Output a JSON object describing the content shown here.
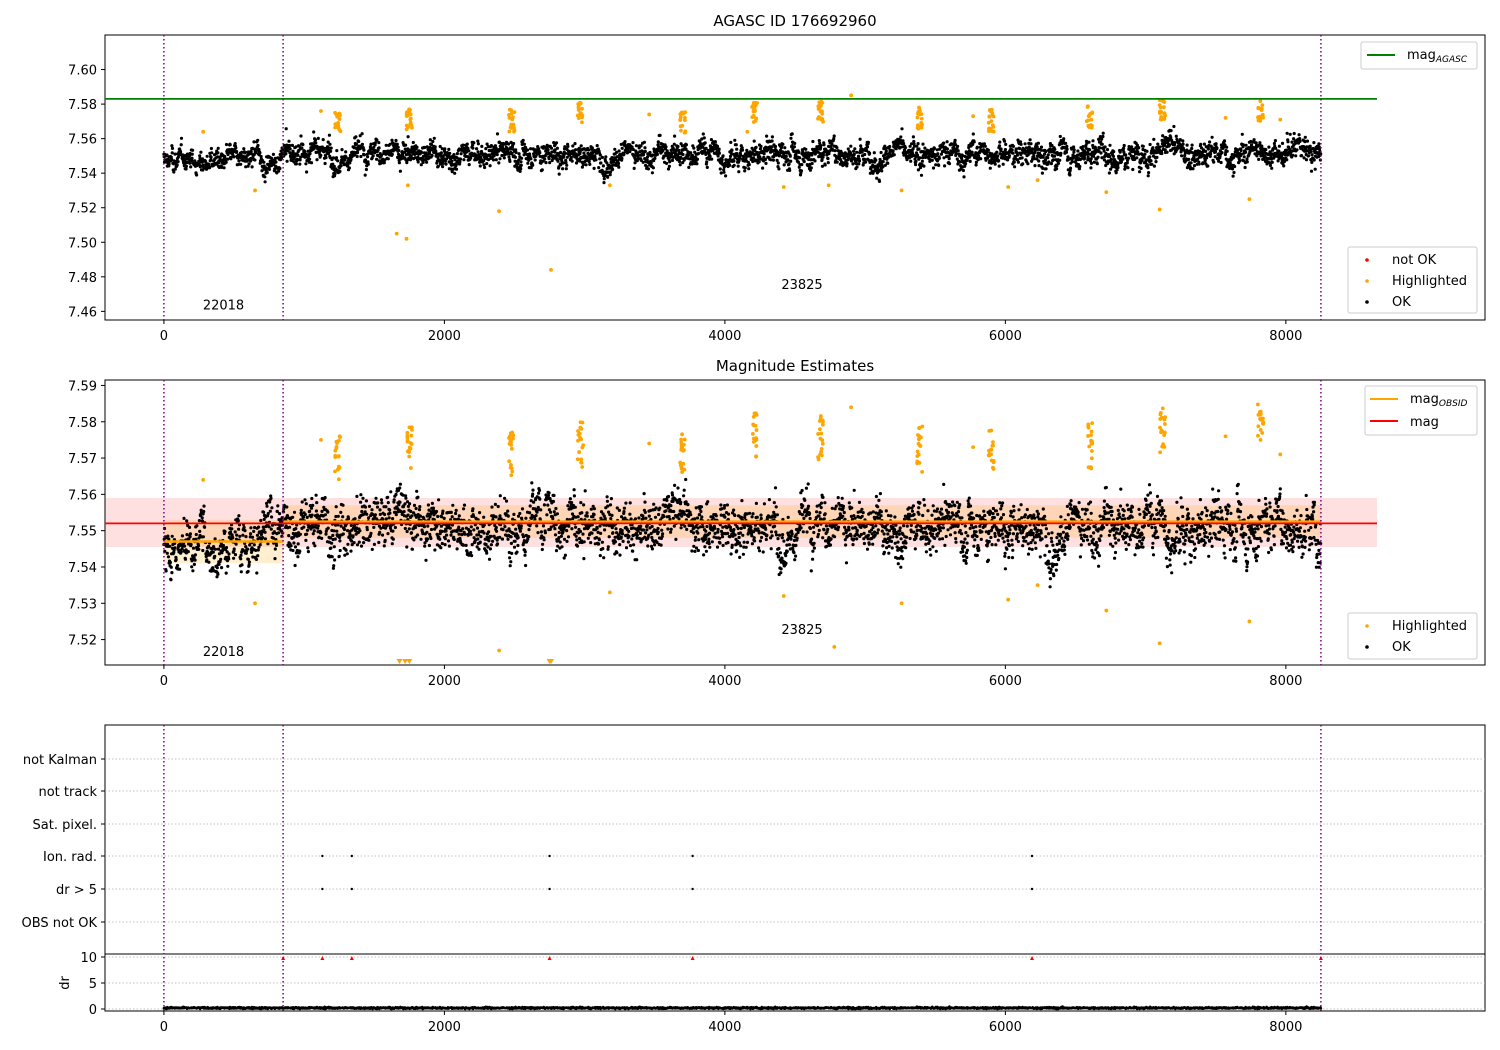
{
  "figure": {
    "x_ticks": [
      0,
      2000,
      4000,
      6000,
      8000
    ],
    "x_range": [
      -420,
      9420
    ]
  },
  "colors": {
    "ok": "#000000",
    "highlighted": "#ffa500",
    "not_ok": "#ff0000",
    "agasc_line": "#008000",
    "mag_line": "#ff0000",
    "obsid_line": "#ffa500",
    "separator": "#800080"
  },
  "separators": [
    0,
    850,
    8250
  ],
  "chart_data": [
    {
      "type": "scatter",
      "title": "AGASC ID 176692960",
      "ylim": [
        7.455,
        7.62
      ],
      "y_ticks": [
        7.46,
        7.48,
        7.5,
        7.52,
        7.54,
        7.56,
        7.58,
        7.6
      ],
      "y_tick_labels": [
        "7.46",
        "7.48",
        "7.50",
        "7.52",
        "7.54",
        "7.56",
        "7.58",
        "7.60"
      ],
      "reference_line": {
        "name": "mag",
        "subscript": "AGASC",
        "y": 7.583,
        "x_range": [
          -420,
          8650
        ]
      },
      "legend_top": {
        "placement": "top-right",
        "entries": [
          {
            "label": "mag",
            "subscript": "AGASC"
          }
        ]
      },
      "legend_bottom": {
        "placement": "bottom-right",
        "entries": [
          "not OK",
          "Highlighted",
          "OK"
        ]
      },
      "obsid_labels": [
        {
          "text": "22018",
          "x": 425,
          "y": 7.461
        },
        {
          "text": "23825",
          "x": 4550,
          "y": 7.473
        }
      ],
      "series": [
        {
          "name": "OK",
          "segments": [
            {
              "x": [
                0,
                850
              ],
              "mean": 7.547,
              "sigma": 0.004
            },
            {
              "x": [
                850,
                8250
              ],
              "mean": 7.552,
              "sigma": 0.005
            }
          ]
        },
        {
          "name": "Highlighted",
          "points": [
            [
              280,
              7.564
            ],
            [
              650,
              7.53
            ],
            [
              1120,
              7.576
            ],
            [
              1660,
              7.505
            ],
            [
              1730,
              7.502
            ],
            [
              1740,
              7.533
            ],
            [
              2390,
              7.518
            ],
            [
              2760,
              7.484
            ],
            [
              3180,
              7.533
            ],
            [
              3460,
              7.574
            ],
            [
              4160,
              7.564
            ],
            [
              4420,
              7.532
            ],
            [
              4740,
              7.533
            ],
            [
              4900,
              7.585
            ],
            [
              5260,
              7.53
            ],
            [
              5770,
              7.573
            ],
            [
              6020,
              7.532
            ],
            [
              6230,
              7.536
            ],
            [
              6720,
              7.529
            ],
            [
              7100,
              7.519
            ],
            [
              7570,
              7.572
            ],
            [
              7740,
              7.525
            ],
            [
              7960,
              7.571
            ]
          ],
          "bursts": [
            [
              1240,
              7.574
            ],
            [
              1750,
              7.576
            ],
            [
              2480,
              7.575
            ],
            [
              2970,
              7.579
            ],
            [
              3700,
              7.574
            ],
            [
              4210,
              7.58
            ],
            [
              4680,
              7.58
            ],
            [
              5390,
              7.576
            ],
            [
              5900,
              7.575
            ],
            [
              6600,
              7.577
            ],
            [
              7120,
              7.582
            ],
            [
              7820,
              7.581
            ]
          ]
        },
        {
          "name": "not OK",
          "points": []
        }
      ]
    },
    {
      "type": "scatter",
      "title": "Magnitude Estimates",
      "ylim": [
        7.513,
        7.5915
      ],
      "y_ticks": [
        7.52,
        7.53,
        7.54,
        7.55,
        7.56,
        7.57,
        7.58,
        7.59
      ],
      "y_tick_labels": [
        "7.52",
        "7.53",
        "7.54",
        "7.55",
        "7.56",
        "7.57",
        "7.58",
        "7.59"
      ],
      "mag_line": {
        "name": "mag",
        "y": 7.552,
        "band": [
          7.5455,
          7.559
        ],
        "x_range": [
          -420,
          8650
        ]
      },
      "obsid_lines": [
        {
          "name": "mag",
          "subscript": "OBSID",
          "x": [
            0,
            850
          ],
          "y": 7.547,
          "band": [
            7.541,
            7.553
          ]
        },
        {
          "x": [
            850,
            8250
          ],
          "y": 7.5525,
          "band": [
            7.548,
            7.557
          ]
        }
      ],
      "legend_top": {
        "placement": "top-right",
        "entries": [
          {
            "label": "mag",
            "subscript": "OBSID"
          },
          {
            "label": "mag"
          }
        ]
      },
      "legend_bottom": {
        "placement": "bottom-right",
        "entries": [
          "Highlighted",
          "OK"
        ]
      },
      "obsid_labels": [
        {
          "text": "22018",
          "x": 425,
          "y": 7.5155
        },
        {
          "text": "23825",
          "x": 4550,
          "y": 7.5215
        }
      ],
      "out_of_range_markers": [
        1680,
        1720,
        1750,
        2750,
        2760
      ],
      "series": [
        {
          "name": "OK",
          "segments": [
            {
              "x": [
                0,
                850
              ],
              "mean": 7.547,
              "sigma": 0.004
            },
            {
              "x": [
                850,
                8250
              ],
              "mean": 7.552,
              "sigma": 0.005
            }
          ]
        },
        {
          "name": "Highlighted",
          "points": [
            [
              280,
              7.564
            ],
            [
              650,
              7.53
            ],
            [
              1120,
              7.575
            ],
            [
              2390,
              7.517
            ],
            [
              3180,
              7.533
            ],
            [
              3460,
              7.574
            ],
            [
              4420,
              7.532
            ],
            [
              4780,
              7.518
            ],
            [
              4900,
              7.584
            ],
            [
              5260,
              7.53
            ],
            [
              5770,
              7.573
            ],
            [
              6020,
              7.531
            ],
            [
              6230,
              7.535
            ],
            [
              6720,
              7.528
            ],
            [
              7100,
              7.519
            ],
            [
              7570,
              7.576
            ],
            [
              7740,
              7.525
            ],
            [
              7960,
              7.571
            ]
          ],
          "bursts": [
            [
              1240,
              7.575
            ],
            [
              1750,
              7.577
            ],
            [
              2480,
              7.576
            ],
            [
              2970,
              7.578
            ],
            [
              3700,
              7.575
            ],
            [
              4210,
              7.581
            ],
            [
              4680,
              7.58
            ],
            [
              5390,
              7.577
            ],
            [
              5900,
              7.576
            ],
            [
              6600,
              7.578
            ],
            [
              7120,
              7.582
            ],
            [
              7820,
              7.583
            ]
          ]
        }
      ]
    },
    {
      "type": "scatter",
      "title": "",
      "flag_rows": [
        "not Kalman",
        "not track",
        "Sat. pixel.",
        "Ion. rad.",
        "dr > 5",
        "OBS not OK"
      ],
      "flag_points": {
        "Ion. rad.": [
          1130,
          1340,
          2750,
          3770,
          6190
        ],
        "dr > 5": [
          1130,
          1340,
          2750,
          3770,
          6190
        ]
      },
      "dr_panel": {
        "ylabel": "dr",
        "ylim": [
          0,
          10
        ],
        "y_ticks": [
          0,
          5,
          10
        ],
        "y_tick_labels": [
          "0",
          "5",
          "10"
        ],
        "series": [
          {
            "name": "dr",
            "x": [
              0,
              8250
            ],
            "typical": 0.2
          }
        ],
        "clipped_markers": [
          850,
          1130,
          1340,
          2750,
          3770,
          6190,
          8250
        ]
      }
    }
  ]
}
